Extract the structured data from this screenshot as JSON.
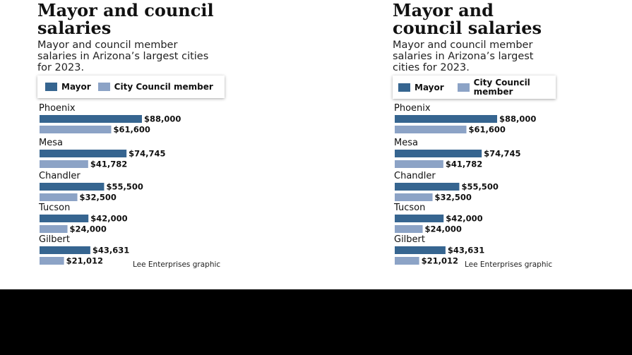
{
  "colors": {
    "mayor": "#366590",
    "council": "#8ca3c6",
    "background": "#ffffff",
    "band": "#000000"
  },
  "left": {
    "title": "Mayor and council salaries",
    "subtitle_lines": [
      "Mayor and council member",
      "salaries in Arizona’s largest cities",
      "for 2023."
    ],
    "legend": {
      "mayor": "Mayor",
      "council": "City Council member"
    },
    "credit": "Lee Enterprises graphic"
  },
  "right": {
    "title_lines": [
      "Mayor and",
      "council salaries"
    ],
    "subtitle_lines": [
      "Mayor and council member",
      "salaries in Arizona’s largest",
      "cities for 2023."
    ],
    "legend": {
      "mayor": "Mayor",
      "council_lines": [
        "City Council",
        "member"
      ]
    },
    "credit": "Lee Enterprises graphic"
  },
  "chart_data": {
    "type": "bar",
    "orientation": "horizontal",
    "title": "Mayor and council salaries",
    "subtitle": "Mayor and council member salaries in Arizona’s largest cities for 2023.",
    "categories": [
      "Phoenix",
      "Mesa",
      "Chandler",
      "Tucson",
      "Gilbert"
    ],
    "series": [
      {
        "name": "Mayor",
        "values": [
          88000,
          74745,
          55500,
          42000,
          43631
        ],
        "labels": [
          "$88,000",
          "$74,745",
          "$55,500",
          "$42,000",
          "$43,631"
        ]
      },
      {
        "name": "City Council member",
        "values": [
          61600,
          41782,
          32500,
          24000,
          21012
        ],
        "labels": [
          "$61,600",
          "$41,782",
          "$32,500",
          "$24,000",
          "$21,012"
        ]
      }
    ],
    "xlim": [
      0,
      88000
    ],
    "legend": "top-left"
  }
}
